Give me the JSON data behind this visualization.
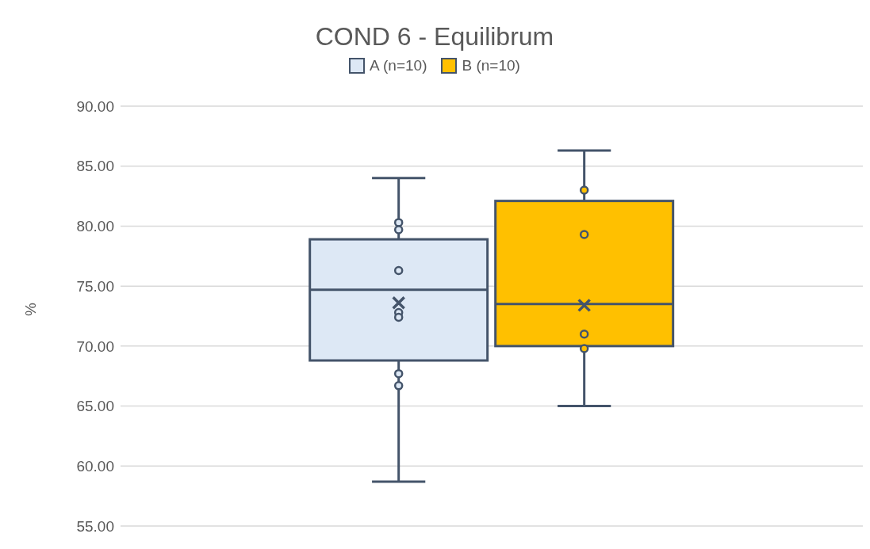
{
  "chart_data": {
    "type": "box",
    "title": "COND 6 - Equilibrum",
    "ylabel": "%",
    "categories": [
      null
    ],
    "series": [
      {
        "name": "A (n=10)",
        "color": "#dde8f5",
        "boxes": [
          {
            "low": 58.7,
            "q1": 68.8,
            "median": 74.7,
            "q3": 78.9,
            "high": 84.0,
            "mean": 73.6,
            "outliers": [
              80.3,
              79.7,
              76.3,
              72.8,
              72.4,
              67.7,
              66.7
            ]
          }
        ]
      },
      {
        "name": "B (n=10)",
        "color": "#ffc000",
        "boxes": [
          {
            "low": 65.0,
            "q1": 70.0,
            "median": 73.5,
            "q3": 82.1,
            "high": 86.3,
            "mean": 73.4,
            "outliers": [
              83.0,
              79.3,
              71.0,
              69.8
            ]
          }
        ]
      }
    ],
    "ylim": [
      55,
      90
    ],
    "yticks": [
      {
        "value": 55,
        "label": "55.00"
      },
      {
        "value": 60,
        "label": "60.00"
      },
      {
        "value": 65,
        "label": "65.00"
      },
      {
        "value": 70,
        "label": "70.00"
      },
      {
        "value": 75,
        "label": "75.00"
      },
      {
        "value": 80,
        "label": "80.00"
      },
      {
        "value": 85,
        "label": "85.00"
      },
      {
        "value": 90,
        "label": "90.00"
      }
    ],
    "grid": "y",
    "legend": "top"
  }
}
